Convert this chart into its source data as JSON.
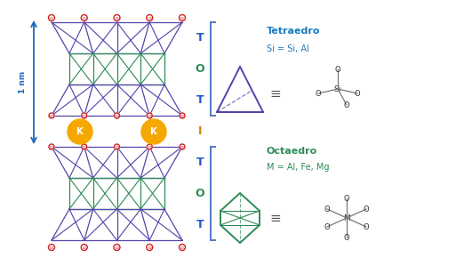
{
  "bg_color": "#ffffff",
  "label_1nm": "1 nm",
  "toto_labels": [
    "T",
    "O",
    "T",
    "I",
    "T",
    "O",
    "T"
  ],
  "toto_colors": [
    "#2255cc",
    "#2e8b57",
    "#2255cc",
    "#cc8800",
    "#2255cc",
    "#2e8b57",
    "#2255cc"
  ],
  "tetraedro_title": "Tetraedro",
  "tetraedro_formula": "Si = Si, Al",
  "tetraedro_title_color": "#1a7abf",
  "octaedro_title": "Octaedro",
  "octaedro_formula": "M = Al, Fe, Mg",
  "octaedro_color": "#2e8b57",
  "purple_color": "#5544aa",
  "green_color": "#2e8b57",
  "red_color": "#cc2222",
  "blue_color": "#1a6abf",
  "orange_color": "#f5a800",
  "bracket_color": "#5577cc",
  "dark_color": "#333333"
}
